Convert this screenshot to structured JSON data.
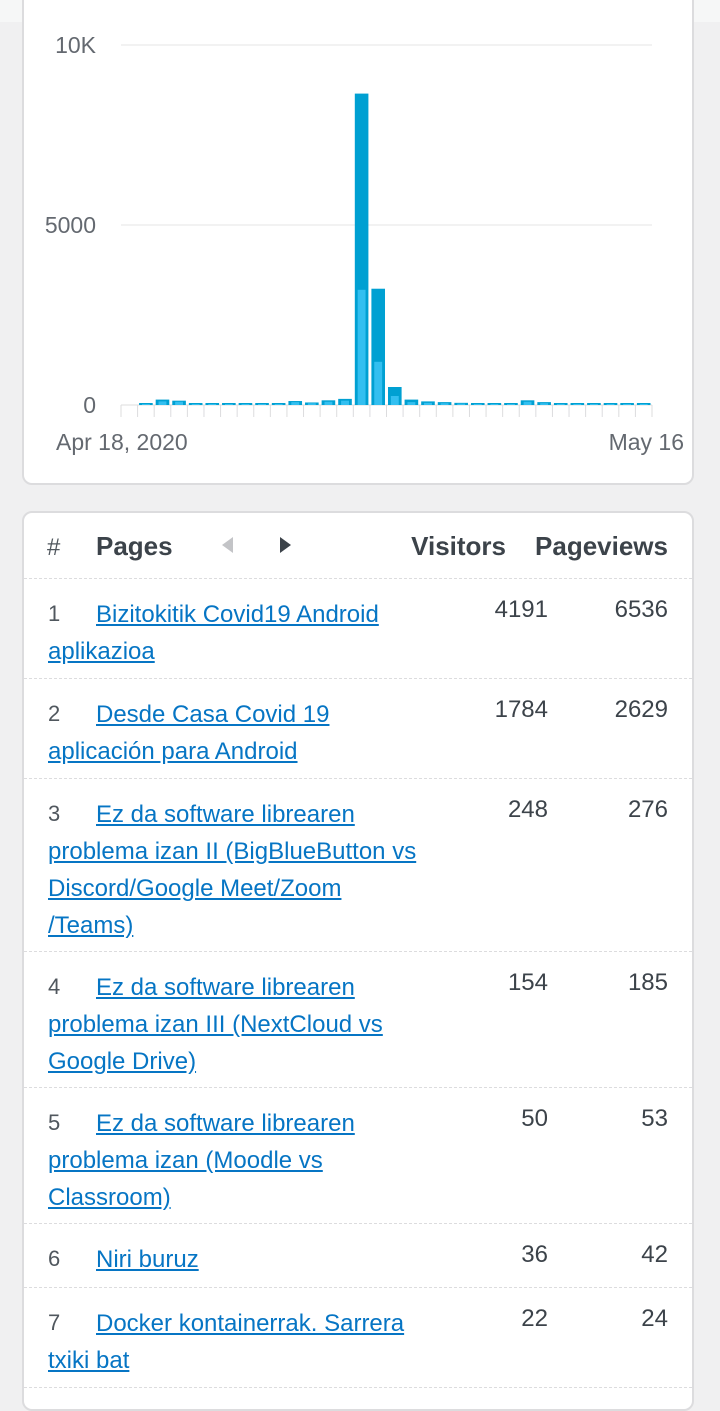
{
  "chart_data": {
    "type": "bar",
    "x_start_label": "Apr 18, 2020",
    "x_end_label": "May 16",
    "yticks": [
      0,
      5000,
      10000
    ],
    "ytick_labels": [
      "0",
      "5000",
      "10K"
    ],
    "ylim": [
      0,
      10000
    ],
    "grid": true,
    "series": [
      {
        "values": [
          0,
          20,
          150,
          120,
          30,
          20,
          10,
          10,
          10,
          10,
          110,
          70,
          130,
          170,
          8650,
          3230,
          500,
          150,
          100,
          80,
          60,
          50,
          30,
          20,
          130,
          80,
          50,
          40,
          30,
          20,
          20,
          30
        ]
      },
      {
        "values": [
          0,
          10,
          100,
          90,
          20,
          10,
          5,
          5,
          5,
          5,
          80,
          50,
          90,
          120,
          3200,
          1200,
          250,
          80,
          60,
          50,
          40,
          30,
          20,
          15,
          90,
          50,
          30,
          25,
          20,
          15,
          15,
          20
        ]
      }
    ],
    "colors": {
      "total": "#00a0d2",
      "highlight": "#33bff0"
    }
  },
  "table": {
    "hash": "#",
    "pages_header": "Pages",
    "visitors_header": "Visitors",
    "pageviews_header": "Pageviews",
    "rows": [
      {
        "rank": "1",
        "title": "Bizitokitik Covid19 Android aplikazioa",
        "visitors": "4191",
        "pageviews": "6536"
      },
      {
        "rank": "2",
        "title": "Desde Casa Covid 19 aplicación para Android",
        "visitors": "1784",
        "pageviews": "2629"
      },
      {
        "rank": "3",
        "title": "Ez da software librearen problema izan II (BigBlueButton vs Discord/Google Meet/Zoom /Teams)",
        "visitors": "248",
        "pageviews": "276"
      },
      {
        "rank": "4",
        "title": "Ez da software librearen problema izan III (NextCloud vs Google Drive)",
        "visitors": "154",
        "pageviews": "185"
      },
      {
        "rank": "5",
        "title": "Ez da software librearen problema izan (Moodle vs Classroom)",
        "visitors": "50",
        "pageviews": "53"
      },
      {
        "rank": "6",
        "title": "Niri buruz",
        "visitors": "36",
        "pageviews": "42"
      },
      {
        "rank": "7",
        "title": "Docker kontainerrak. Sarrera txiki bat",
        "visitors": "22",
        "pageviews": "24"
      }
    ]
  }
}
